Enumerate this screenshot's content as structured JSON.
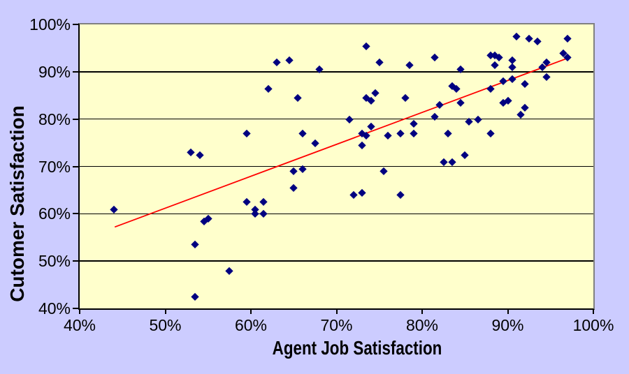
{
  "chart_data": {
    "type": "scatter",
    "title": "",
    "xlabel": "Agent Job Satisfaction",
    "ylabel": "Cutomer Satisfaction",
    "xlim": [
      40,
      100
    ],
    "ylim": [
      40,
      100
    ],
    "x_ticks": [
      40,
      50,
      60,
      70,
      80,
      90,
      100
    ],
    "y_ticks": [
      40,
      50,
      60,
      70,
      80,
      90,
      100
    ],
    "x_tick_labels": [
      "40%",
      "50%",
      "60%",
      "70%",
      "80%",
      "90%",
      "100%"
    ],
    "y_tick_labels": [
      "40%",
      "50%",
      "60%",
      "70%",
      "80%",
      "90%",
      "100%"
    ],
    "y_gridlines": [
      50,
      60,
      70,
      80,
      90
    ],
    "grid": "horizontal-only",
    "legend": "none",
    "marker": {
      "shape": "diamond",
      "color": "#000080"
    },
    "trendline": {
      "color": "#ff0000",
      "x1": 44.1,
      "y1": 57.2,
      "x2": 96.9,
      "y2": 92.8
    },
    "points": [
      [
        44,
        61
      ],
      [
        53,
        73
      ],
      [
        54,
        72.5
      ],
      [
        53.5,
        53.5
      ],
      [
        54.5,
        58.5
      ],
      [
        55,
        59
      ],
      [
        57.5,
        48
      ],
      [
        53.5,
        42.5
      ],
      [
        59.5,
        77
      ],
      [
        59.5,
        62.5
      ],
      [
        60.5,
        61
      ],
      [
        60.5,
        60
      ],
      [
        61.5,
        62.5
      ],
      [
        61.5,
        60
      ],
      [
        62,
        86.5
      ],
      [
        63,
        92
      ],
      [
        64.5,
        92.5
      ],
      [
        65.5,
        84.5
      ],
      [
        68,
        90.5
      ],
      [
        73.5,
        95.5
      ],
      [
        75,
        92
      ],
      [
        78.5,
        91.5
      ],
      [
        66,
        77
      ],
      [
        67.5,
        75
      ],
      [
        65,
        69
      ],
      [
        66,
        69.5
      ],
      [
        75.5,
        69
      ],
      [
        65,
        65.5
      ],
      [
        72,
        64
      ],
      [
        73,
        64.5
      ],
      [
        77.5,
        64
      ],
      [
        71.5,
        80
      ],
      [
        73.5,
        84.5
      ],
      [
        74,
        84
      ],
      [
        74.5,
        85.5
      ],
      [
        78,
        84.5
      ],
      [
        74,
        78.5
      ],
      [
        73,
        77
      ],
      [
        73.5,
        76.5
      ],
      [
        76,
        76.5
      ],
      [
        77.5,
        77
      ],
      [
        79,
        77
      ],
      [
        79,
        79
      ],
      [
        73,
        74.5
      ],
      [
        81.5,
        93
      ],
      [
        88,
        93.5
      ],
      [
        88.5,
        93.5
      ],
      [
        89,
        93
      ],
      [
        88.5,
        91.5
      ],
      [
        90.5,
        92.5
      ],
      [
        90.5,
        91
      ],
      [
        91,
        97.5
      ],
      [
        92.5,
        97
      ],
      [
        93.5,
        96.5
      ],
      [
        97,
        97
      ],
      [
        96.5,
        94
      ],
      [
        97,
        93
      ],
      [
        94.5,
        92
      ],
      [
        94,
        91
      ],
      [
        94.5,
        89
      ],
      [
        84.5,
        90.5
      ],
      [
        89.5,
        88
      ],
      [
        90.5,
        88.5
      ],
      [
        92,
        87.5
      ],
      [
        88,
        86.5
      ],
      [
        83.5,
        87
      ],
      [
        84,
        86.5
      ],
      [
        82,
        83
      ],
      [
        84.5,
        83.5
      ],
      [
        89.5,
        83.5
      ],
      [
        90,
        84
      ],
      [
        92,
        82.5
      ],
      [
        91.5,
        81
      ],
      [
        81.5,
        80.5
      ],
      [
        85.5,
        79.5
      ],
      [
        86.5,
        80
      ],
      [
        83,
        77
      ],
      [
        88,
        77
      ],
      [
        85,
        72.5
      ],
      [
        82.5,
        71
      ],
      [
        83.5,
        71
      ]
    ]
  },
  "colors": {
    "background": "#ccccff",
    "plot_background": "#ffffcc",
    "marker": "#000080",
    "trendline": "#ff0000",
    "gridline": "#000000",
    "plot_border_topright": "#808080",
    "axis": "#000000"
  }
}
